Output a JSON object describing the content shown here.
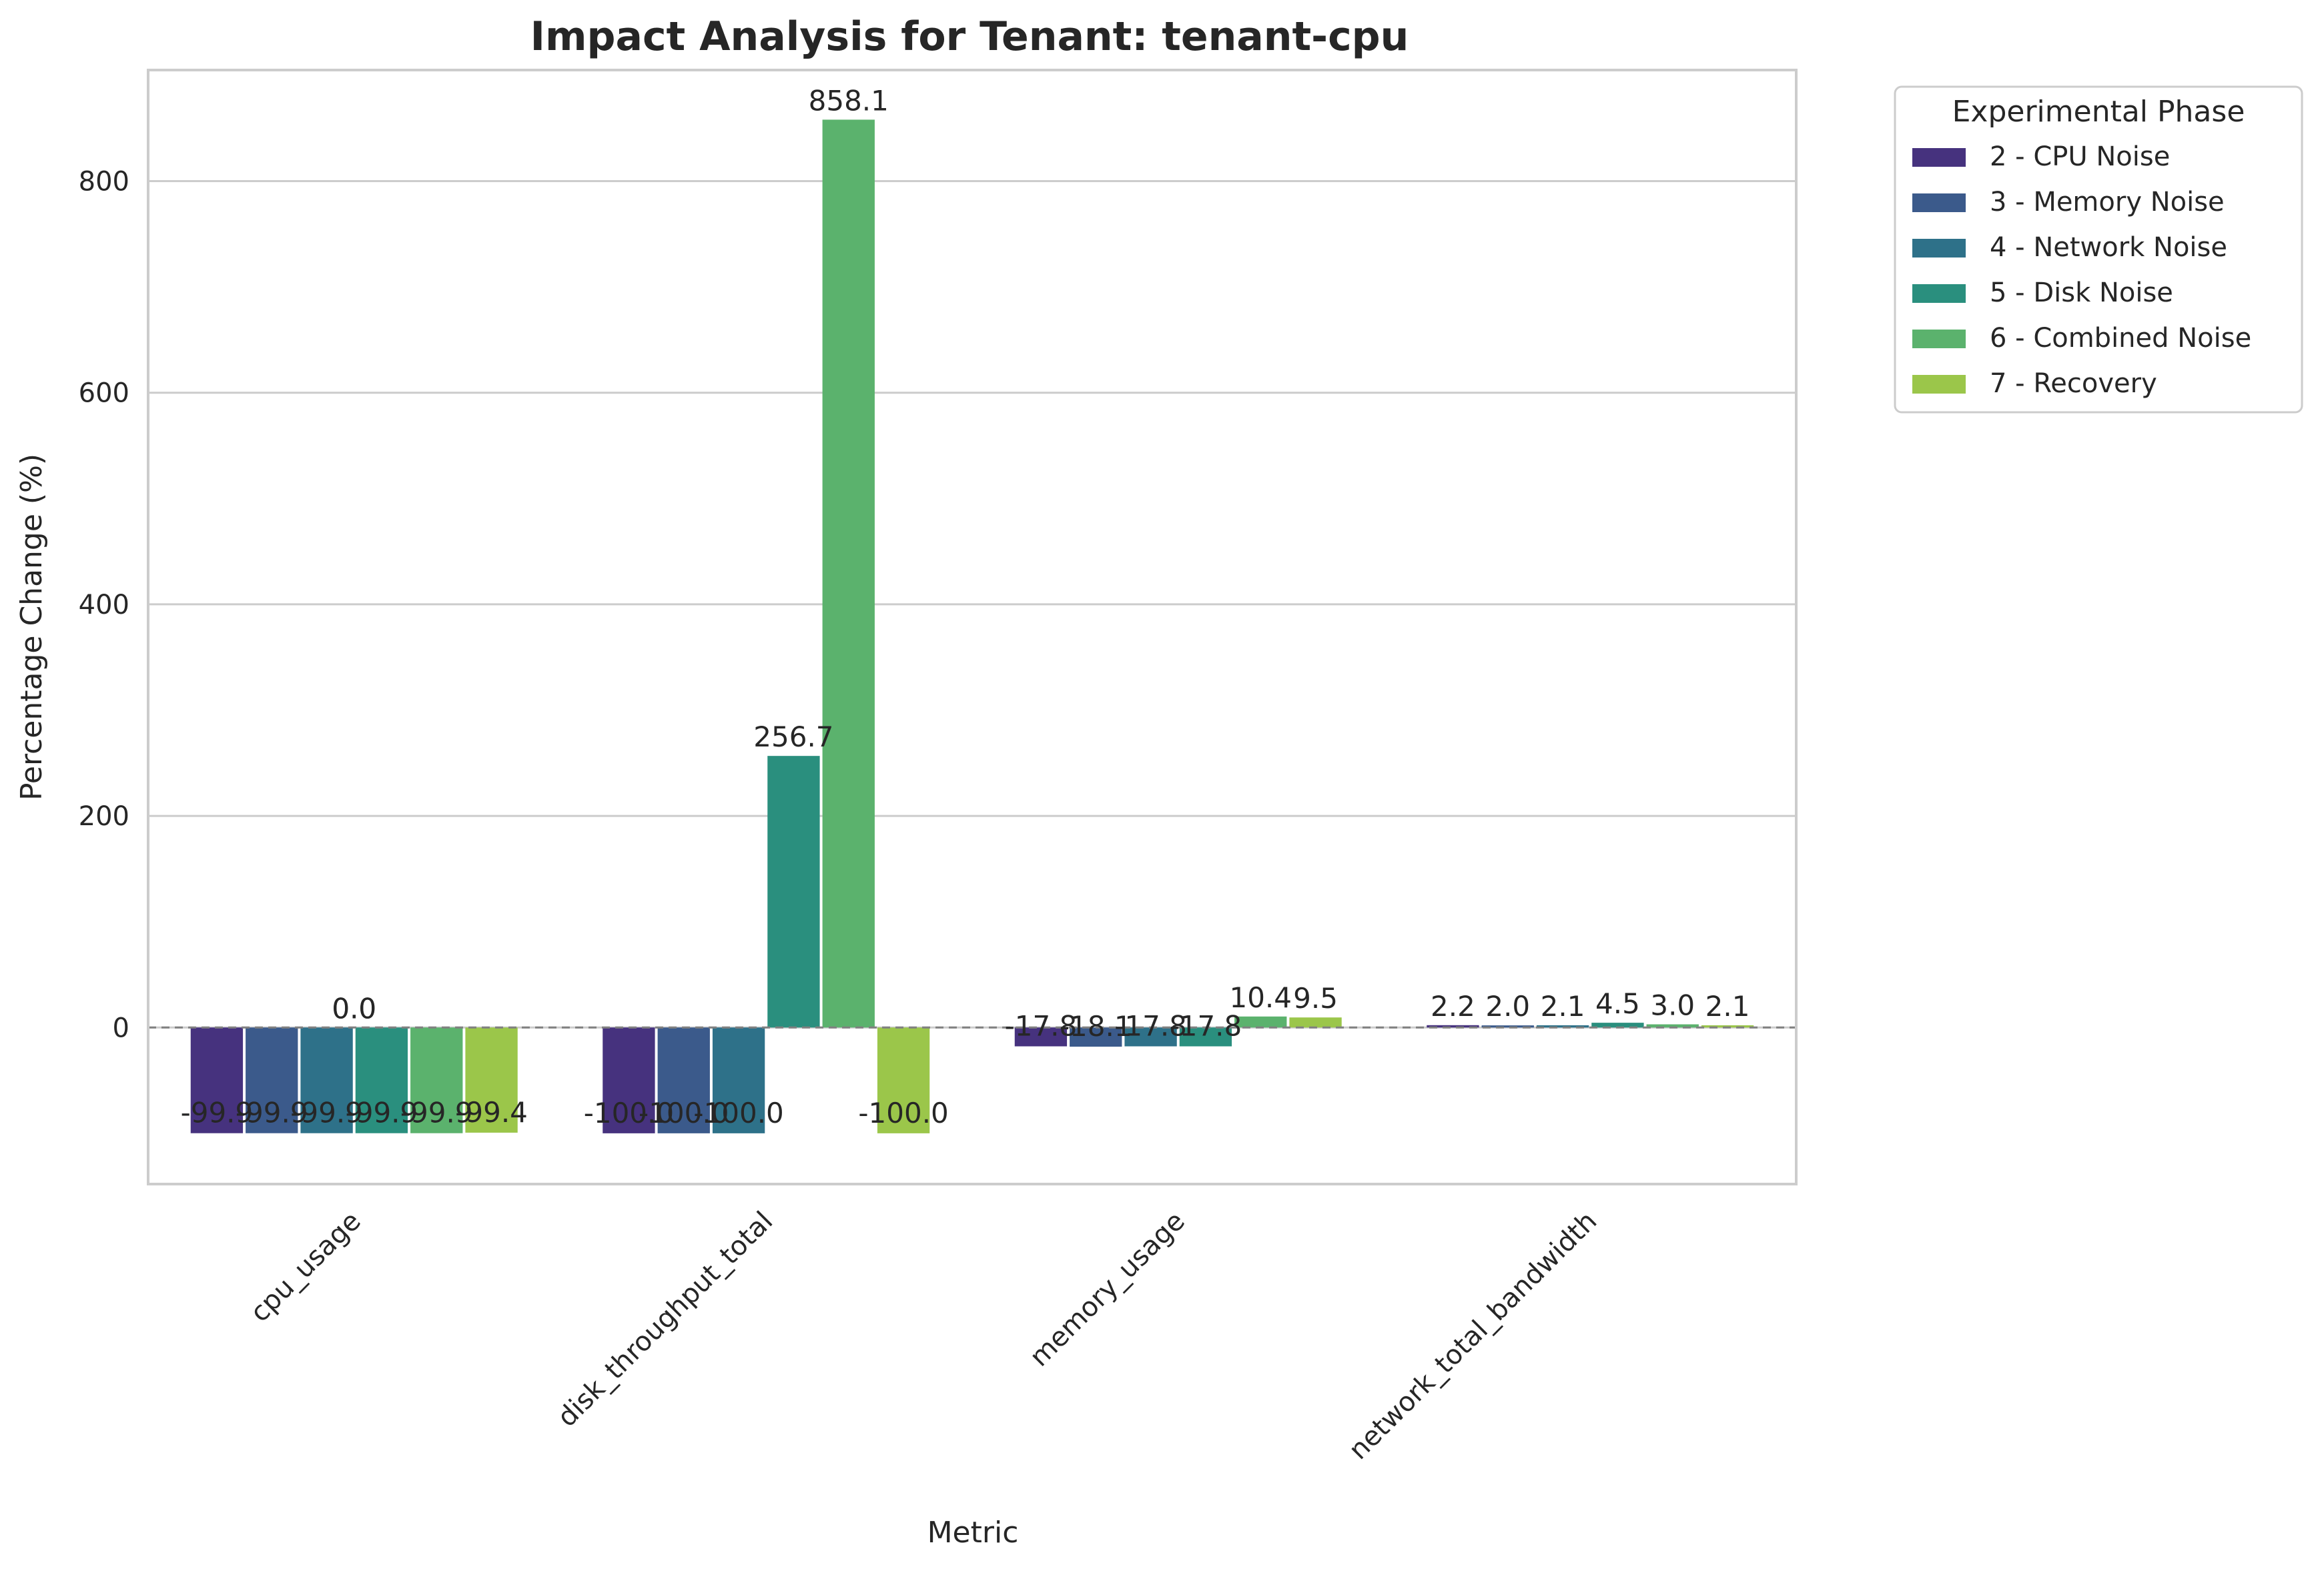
{
  "chart_data": {
    "type": "bar",
    "title": "Impact Analysis for Tenant: tenant-cpu",
    "xlabel": "Metric",
    "ylabel": "Percentage Change (%)",
    "ylim": [
      -148,
      905
    ],
    "yticks": [
      0,
      200,
      400,
      600,
      800
    ],
    "grid": true,
    "legend_position": "outside-right",
    "legend_title": "Experimental Phase",
    "categories": [
      "cpu_usage",
      "disk_throughput_total",
      "memory_usage",
      "network_total_bandwidth"
    ],
    "series": [
      {
        "name": "2 - CPU Noise",
        "color": "#46327e",
        "values": [
          -99.9,
          -100.0,
          -17.8,
          2.2
        ],
        "labels": [
          "-99.9",
          "-100.0",
          "-17.8",
          "2.2"
        ]
      },
      {
        "name": "3 - Memory Noise",
        "color": "#3b5a8b",
        "values": [
          -99.9,
          -100.0,
          -18.1,
          2.0
        ],
        "labels": [
          "-99.9",
          "-100.0",
          "-18.1",
          "2.0"
        ]
      },
      {
        "name": "4 - Network Noise",
        "color": "#2e7189",
        "values": [
          -99.9,
          -100.0,
          -17.8,
          2.1
        ],
        "labels": [
          "-99.9",
          "-100.0",
          "-17.8",
          "2.1"
        ]
      },
      {
        "name": "5 - Disk Noise",
        "color": "#2a8f7e",
        "values": [
          -99.9,
          256.7,
          -17.8,
          4.5
        ],
        "labels": [
          "-99.9",
          "256.7",
          "-17.8",
          "4.5"
        ]
      },
      {
        "name": "6 - Combined Noise",
        "color": "#5bb26d",
        "values": [
          -99.9,
          858.1,
          10.4,
          3.0
        ],
        "labels": [
          "-99.9",
          "858.1",
          "10.4",
          "3.0"
        ]
      },
      {
        "name": "7 - Recovery",
        "color": "#9bc64a",
        "values": [
          -99.4,
          -100.0,
          9.5,
          2.1
        ],
        "labels": [
          "-99.4",
          "-100.0",
          "9.5",
          "2.1"
        ]
      }
    ],
    "zero_labels": [
      "0.0",
      "0.0"
    ],
    "reference_line": 0
  }
}
